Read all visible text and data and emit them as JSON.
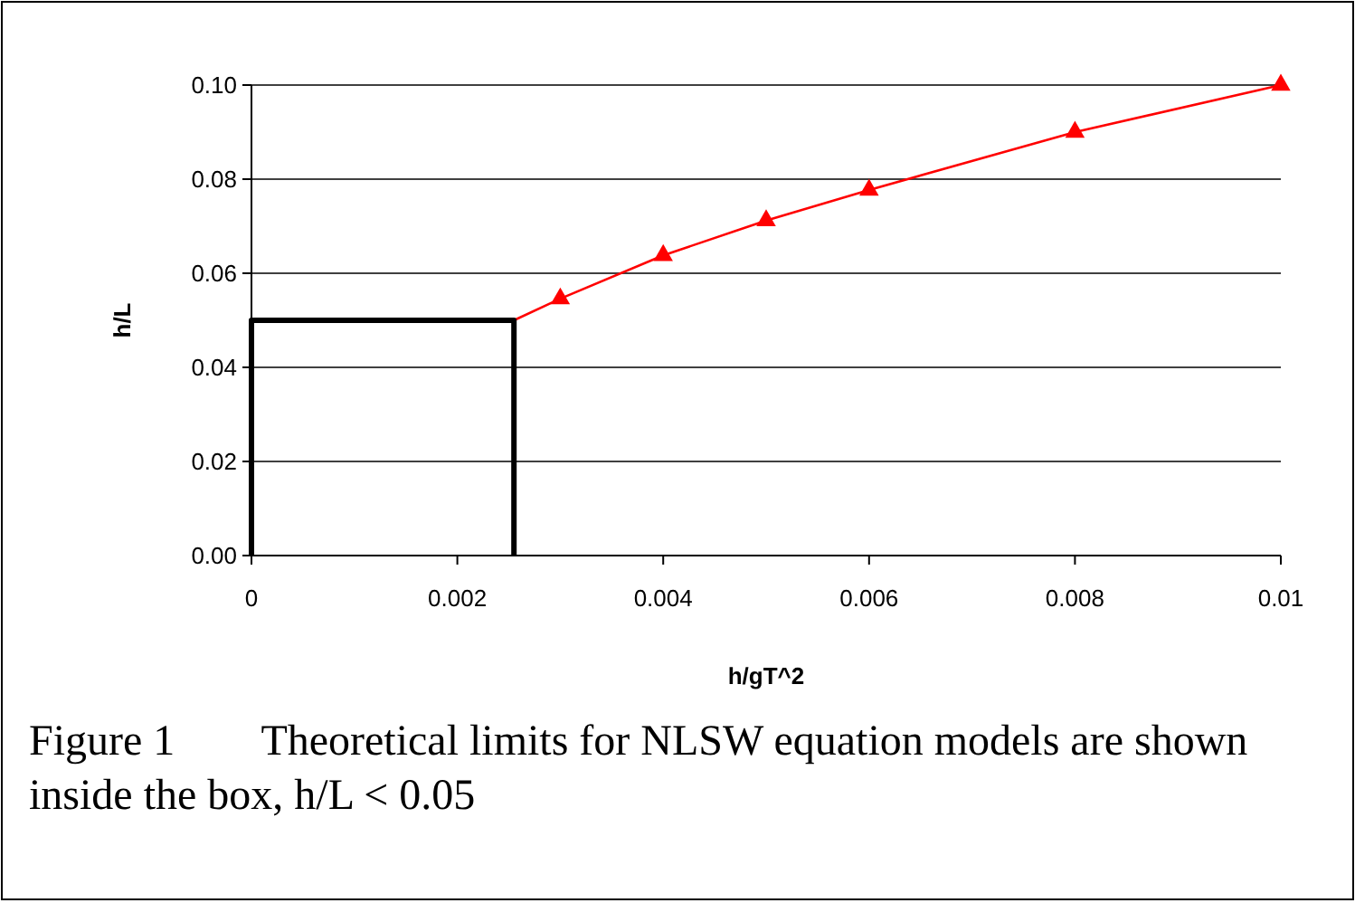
{
  "chart_data": {
    "type": "line",
    "xlabel": "h/gT^2",
    "ylabel": "h/L",
    "xlim": [
      0,
      0.01
    ],
    "xticks": [
      0,
      0.002,
      0.004,
      0.006,
      0.008,
      0.01
    ],
    "ylim": [
      0,
      0.1
    ],
    "yticks": [
      {
        "value": 0,
        "label": "0.00"
      },
      {
        "value": 0.02,
        "label": "0.02"
      },
      {
        "value": 0.04,
        "label": "0.04"
      },
      {
        "value": 0.06,
        "label": "0.06"
      },
      {
        "value": 0.08,
        "label": "0.08"
      },
      {
        "value": 0.1,
        "label": "0.10"
      }
    ],
    "grid": "y",
    "series": [
      {
        "color": "#ff0000",
        "marker": "none",
        "x": [
          0.00255,
          0.003,
          0.004,
          0.005,
          0.006,
          0.008,
          0.01
        ],
        "values": [
          0.05,
          0.0546,
          0.0638,
          0.0712,
          0.0777,
          0.09,
          0.1
        ]
      },
      {
        "type": "scatter",
        "color": "#ff0000",
        "marker": "triangle",
        "x": [
          0.003,
          0.004,
          0.005,
          0.006,
          0.008,
          0.01
        ],
        "values": [
          0.0546,
          0.0638,
          0.0712,
          0.0777,
          0.09,
          0.1
        ]
      },
      {
        "color": "#000000",
        "marker": "none",
        "x": [
          0,
          0,
          0.00255,
          0.00255
        ],
        "values": [
          0,
          0.05,
          0.05,
          0
        ]
      }
    ],
    "annotations": [
      "Figure 1        Theoretical limits for NLSW equation models are shown inside the box, h/L < 0.05"
    ]
  }
}
